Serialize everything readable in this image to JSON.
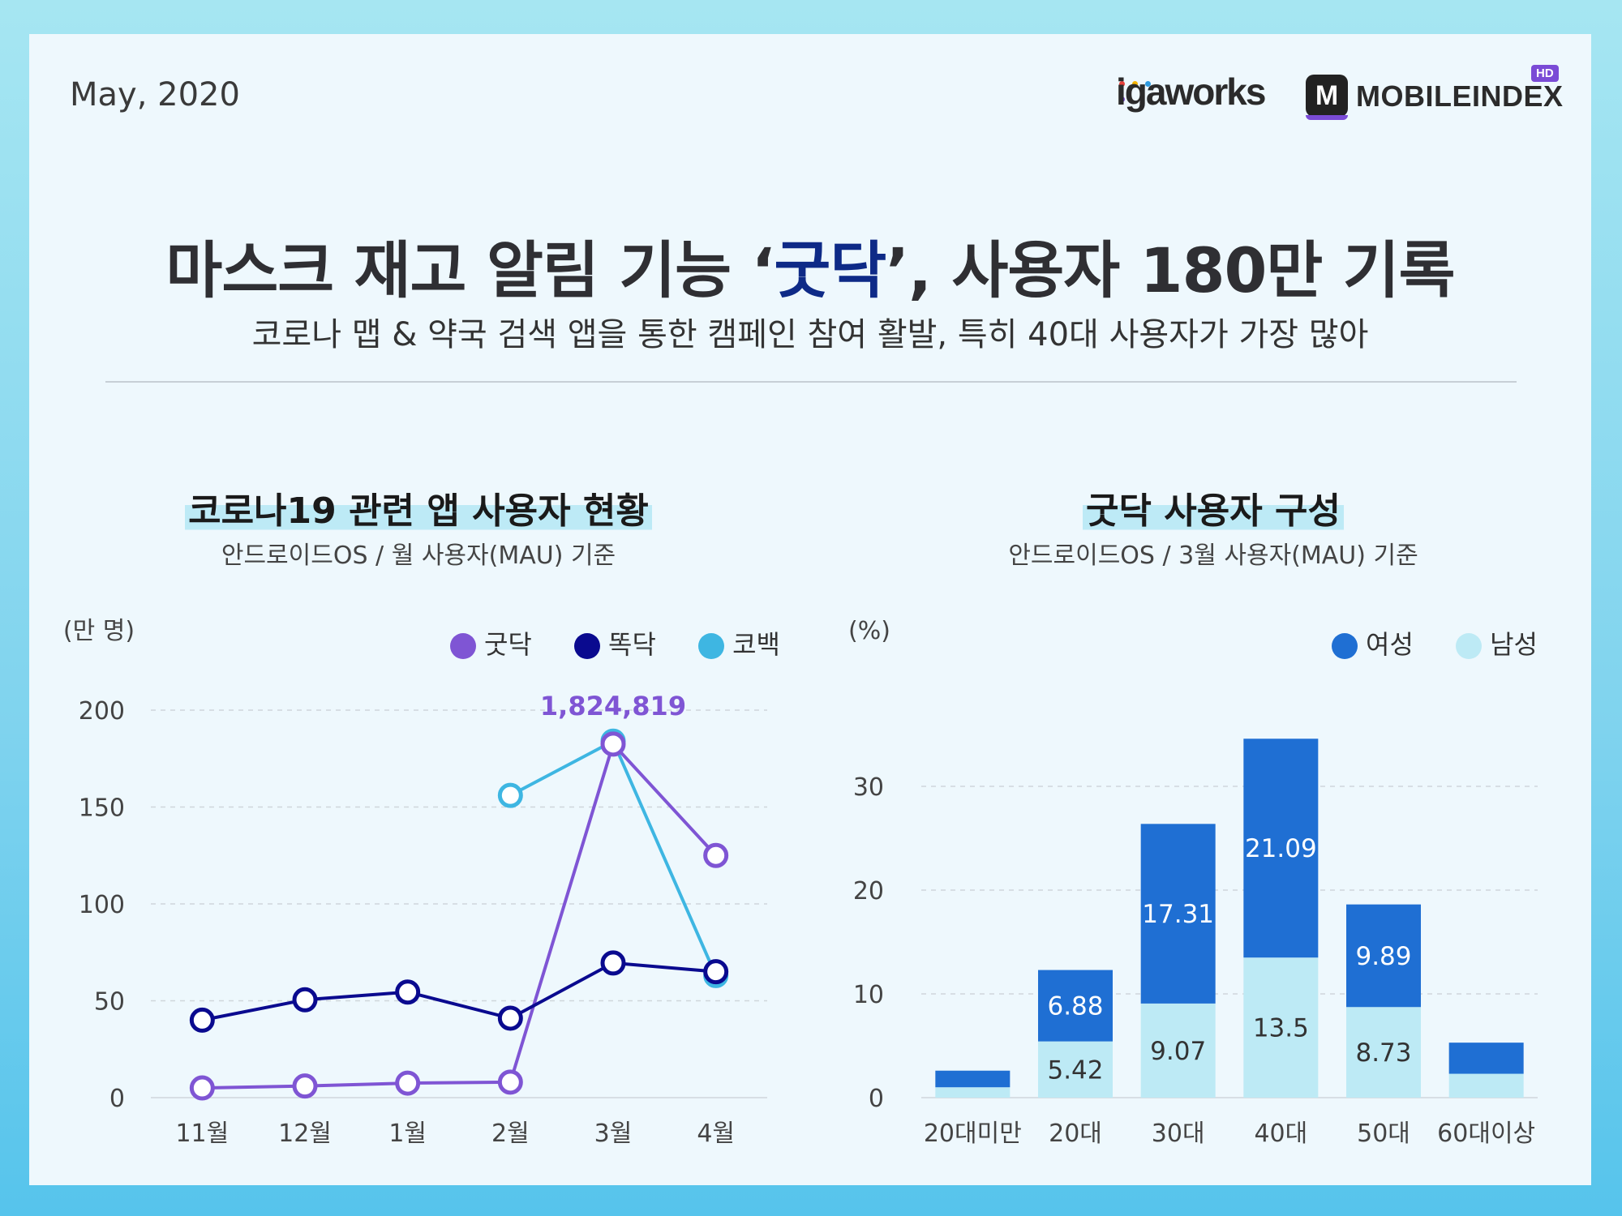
{
  "header": {
    "date": "May, 2020",
    "brand_left": "igaworks",
    "brand_right": "MOBILEINDEX",
    "brand_badge": "HD",
    "brand_logo_letter": "M"
  },
  "title": {
    "part1": "마스크 재고 알림 기능 ‘",
    "highlight": "굿닥",
    "part2": "’, 사용자 180만 기록"
  },
  "subtitle": "코로나 맵 & 약국 검색 앱을 통한 캠페인 참여 활발, 특히 40대 사용자가 가장 많아",
  "left_panel": {
    "title": "코로나19 관련 앱 사용자 현황",
    "subtitle": "안드로이드OS / 월 사용자(MAU) 기준"
  },
  "right_panel": {
    "title": "굿닥 사용자 구성",
    "subtitle": "안드로이드OS / 3월 사용자(MAU) 기준"
  },
  "colors": {
    "goodoc": "#7f55d4",
    "ttokdak": "#0a0a8f",
    "kobaek": "#3eb6e2",
    "female": "#1f6fd3",
    "male": "#bdeaf5",
    "grid": "#cfd6dc",
    "axis_text": "#444444"
  },
  "chart_data": [
    {
      "type": "line",
      "ylabel": "(만 명)",
      "ylim": [
        0,
        200
      ],
      "yticks": [
        0,
        50,
        100,
        150,
        200
      ],
      "categories": [
        "11월",
        "12월",
        "1월",
        "2월",
        "3월",
        "4월"
      ],
      "legend_position": "top-right",
      "annotation": "1,824,819",
      "series": [
        {
          "name": "굿닥",
          "color_key": "goodoc",
          "values": [
            5,
            6,
            7.5,
            8,
            182.5,
            125
          ]
        },
        {
          "name": "똑닥",
          "color_key": "ttokdak",
          "values": [
            40,
            50.5,
            54.5,
            41,
            69.5,
            65
          ]
        },
        {
          "name": "코백",
          "color_key": "kobaek",
          "values": [
            null,
            null,
            null,
            156,
            184,
            63
          ]
        }
      ]
    },
    {
      "type": "bar",
      "stacked": true,
      "ylabel": "(%)",
      "ylim": [
        0,
        35
      ],
      "yticks": [
        0,
        10,
        20,
        30
      ],
      "categories": [
        "20대미만",
        "20대",
        "30대",
        "40대",
        "50대",
        "60대이상"
      ],
      "legend_position": "top-right",
      "series": [
        {
          "name": "남성",
          "color_key": "male",
          "values": [
            1.0,
            5.42,
            9.07,
            13.5,
            8.73,
            2.3
          ],
          "labels": [
            "",
            "5.42",
            "9.07",
            "13.5",
            "8.73",
            ""
          ]
        },
        {
          "name": "여성",
          "color_key": "female",
          "values": [
            1.6,
            6.88,
            17.31,
            21.09,
            9.89,
            3.0
          ],
          "labels": [
            "",
            "6.88",
            "17.31",
            "21.09",
            "9.89",
            ""
          ]
        }
      ]
    }
  ]
}
